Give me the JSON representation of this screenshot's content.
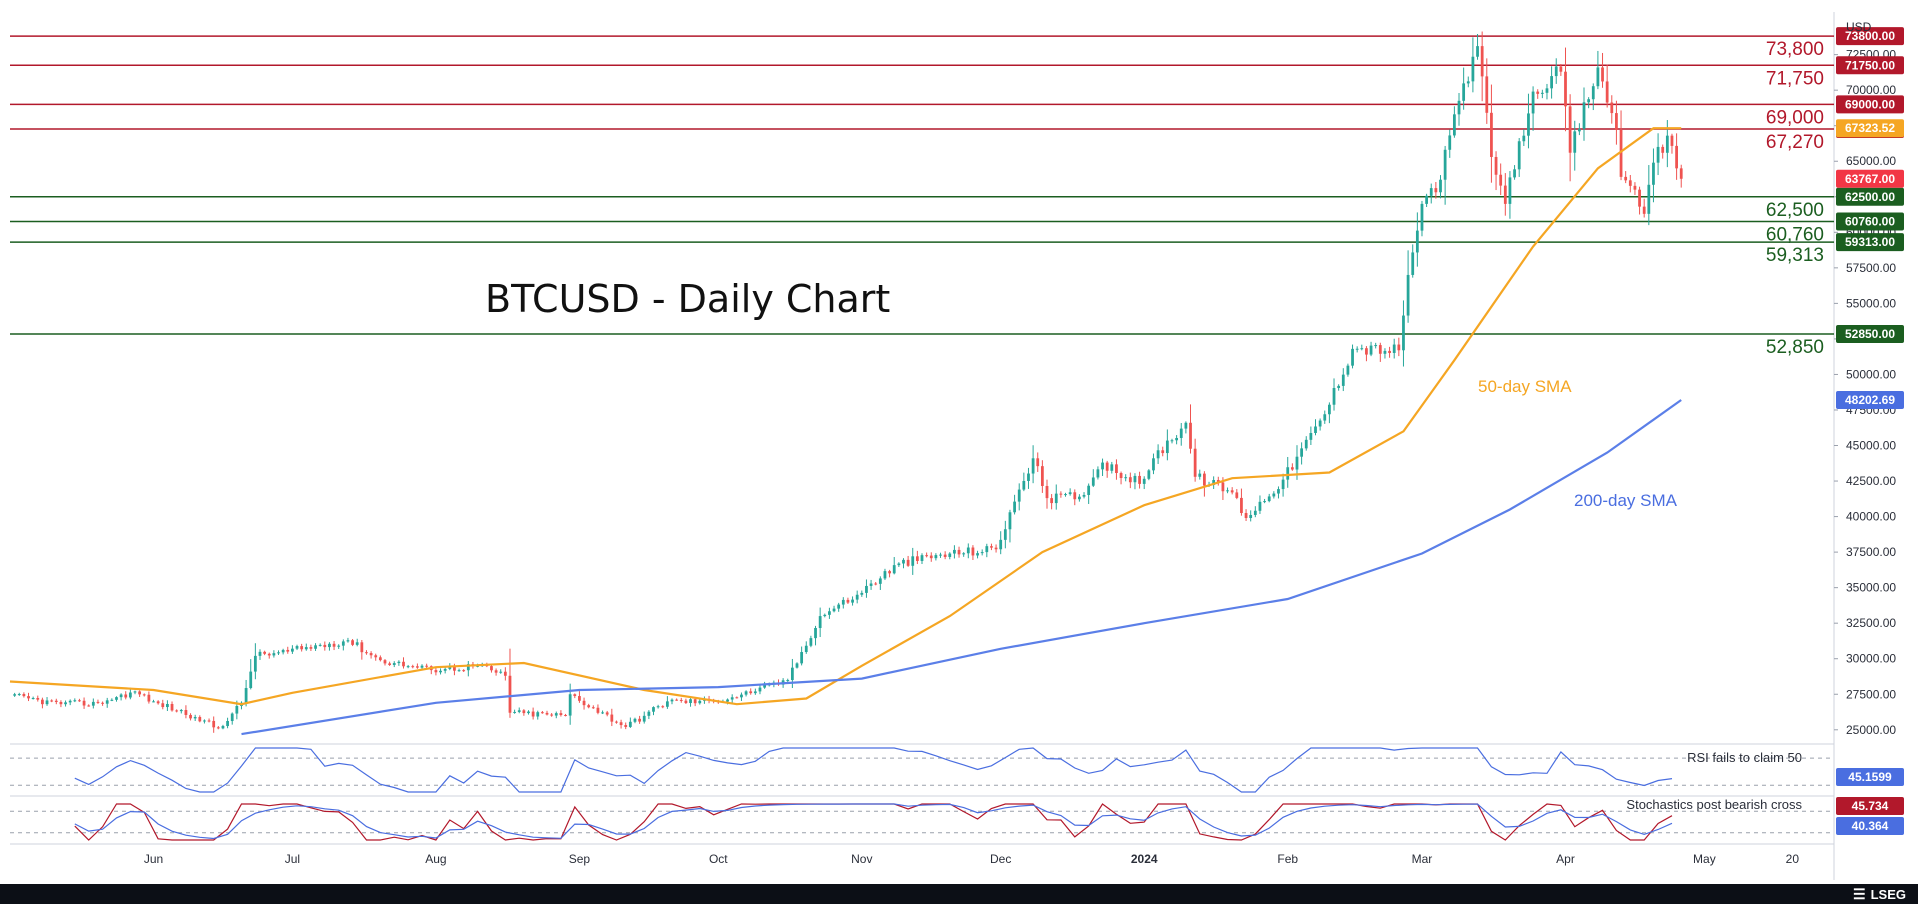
{
  "chart_data": {
    "type": "candlestick",
    "symbol_title": "BTCUSD - Daily Chart",
    "currency": "USD",
    "ylim": [
      24000,
      75500
    ],
    "y_ticks": [
      25000,
      27500,
      30000,
      32500,
      35000,
      37500,
      40000,
      42500,
      45000,
      47500,
      50000,
      52500,
      55000,
      57500,
      60000,
      62500,
      65000,
      67500,
      70000,
      72500
    ],
    "x_range": [
      "2023-05-01",
      "2024-05-29"
    ],
    "x_ticks": [
      {
        "date": "2023-06-01",
        "label": "Jun"
      },
      {
        "date": "2023-07-01",
        "label": "Jul"
      },
      {
        "date": "2023-08-01",
        "label": "Aug"
      },
      {
        "date": "2023-09-01",
        "label": "Sep"
      },
      {
        "date": "2023-10-01",
        "label": "Oct"
      },
      {
        "date": "2023-11-01",
        "label": "Nov"
      },
      {
        "date": "2023-12-01",
        "label": "Dec"
      },
      {
        "date": "2024-01-01",
        "label": "2024",
        "bold": true
      },
      {
        "date": "2024-02-01",
        "label": "Feb"
      },
      {
        "date": "2024-03-01",
        "label": "Mar"
      },
      {
        "date": "2024-04-01",
        "label": "Apr"
      },
      {
        "date": "2024-05-01",
        "label": "May"
      },
      {
        "date": "2024-05-20",
        "label": "20"
      }
    ],
    "anchors": [
      [
        "2023-05-01",
        27400
      ],
      [
        "2023-05-12",
        26800
      ],
      [
        "2023-05-20",
        26900
      ],
      [
        "2023-05-28",
        27700
      ],
      [
        "2023-06-01",
        27000
      ],
      [
        "2023-06-10",
        25900
      ],
      [
        "2023-06-15",
        25100
      ],
      [
        "2023-06-20",
        26900
      ],
      [
        "2023-06-23",
        30200
      ],
      [
        "2023-06-30",
        30500
      ],
      [
        "2023-07-13",
        31300
      ],
      [
        "2023-07-20",
        29900
      ],
      [
        "2023-07-31",
        29200
      ],
      [
        "2023-08-10",
        29500
      ],
      [
        "2023-08-16",
        28800
      ],
      [
        "2023-08-17",
        26200
      ],
      [
        "2023-08-29",
        26000
      ],
      [
        "2023-08-30",
        27500
      ],
      [
        "2023-09-11",
        25200
      ],
      [
        "2023-09-20",
        27000
      ],
      [
        "2023-09-30",
        27000
      ],
      [
        "2023-10-09",
        27700
      ],
      [
        "2023-10-16",
        28500
      ],
      [
        "2023-10-23",
        33000
      ],
      [
        "2023-10-31",
        34500
      ],
      [
        "2023-11-09",
        36700
      ],
      [
        "2023-11-20",
        37400
      ],
      [
        "2023-11-30",
        37700
      ],
      [
        "2023-12-05",
        41900
      ],
      [
        "2023-12-08",
        44100
      ],
      [
        "2023-12-11",
        41300
      ],
      [
        "2023-12-18",
        41400
      ],
      [
        "2023-12-23",
        43800
      ],
      [
        "2023-12-31",
        42300
      ],
      [
        "2024-01-03",
        44100
      ],
      [
        "2024-01-10",
        46600
      ],
      [
        "2024-01-12",
        42800
      ],
      [
        "2024-01-20",
        41700
      ],
      [
        "2024-01-23",
        39900
      ],
      [
        "2024-01-31",
        42600
      ],
      [
        "2024-02-09",
        47200
      ],
      [
        "2024-02-15",
        51800
      ],
      [
        "2024-02-25",
        51700
      ],
      [
        "2024-02-27",
        57000
      ],
      [
        "2024-03-01",
        62000
      ],
      [
        "2024-03-05",
        63700
      ],
      [
        "2024-03-08",
        68300
      ],
      [
        "2024-03-13",
        73100
      ],
      [
        "2024-03-16",
        65300
      ],
      [
        "2024-03-19",
        62000
      ],
      [
        "2024-03-25",
        69900
      ],
      [
        "2024-03-31",
        71300
      ],
      [
        "2024-04-02",
        65600
      ],
      [
        "2024-04-08",
        71600
      ],
      [
        "2024-04-12",
        67200
      ],
      [
        "2024-04-13",
        63900
      ],
      [
        "2024-04-16",
        63000
      ],
      [
        "2024-04-18",
        61300
      ],
      [
        "2024-04-20",
        64900
      ],
      [
        "2024-04-23",
        66800
      ],
      [
        "2024-04-25",
        64500
      ],
      [
        "2024-04-26",
        63767
      ]
    ],
    "series": [
      {
        "name": "50-day SMA",
        "color": "#f5a623",
        "points": [
          [
            "2023-05-01",
            28400
          ],
          [
            "2023-06-01",
            27800
          ],
          [
            "2023-06-20",
            26800
          ],
          [
            "2023-07-01",
            27600
          ],
          [
            "2023-08-01",
            29400
          ],
          [
            "2023-08-20",
            29700
          ],
          [
            "2023-09-15",
            27800
          ],
          [
            "2023-10-05",
            26800
          ],
          [
            "2023-10-20",
            27200
          ],
          [
            "2023-11-01",
            29500
          ],
          [
            "2023-11-20",
            33000
          ],
          [
            "2023-12-10",
            37500
          ],
          [
            "2024-01-01",
            40800
          ],
          [
            "2024-01-20",
            42700
          ],
          [
            "2024-02-10",
            43100
          ],
          [
            "2024-02-26",
            46000
          ],
          [
            "2024-03-08",
            51000
          ],
          [
            "2024-03-25",
            59000
          ],
          [
            "2024-04-08",
            64500
          ],
          [
            "2024-04-20",
            67323.52
          ],
          [
            "2024-04-26",
            67323.52
          ]
        ]
      },
      {
        "name": "200-day SMA",
        "color": "#5b7fe8",
        "points": [
          [
            "2023-06-20",
            24700
          ],
          [
            "2023-08-01",
            26900
          ],
          [
            "2023-09-01",
            27800
          ],
          [
            "2023-10-01",
            28000
          ],
          [
            "2023-11-01",
            28600
          ],
          [
            "2023-12-01",
            30700
          ],
          [
            "2024-01-01",
            32500
          ],
          [
            "2024-02-01",
            34200
          ],
          [
            "2024-03-01",
            37400
          ],
          [
            "2024-03-20",
            40500
          ],
          [
            "2024-04-10",
            44500
          ],
          [
            "2024-04-26",
            48202.69
          ]
        ]
      }
    ],
    "levels": [
      {
        "value": 73800,
        "label": "73,800",
        "tag": "73800.00",
        "color": "#b2182b"
      },
      {
        "value": 71750,
        "label": "71,750",
        "tag": "71750.00",
        "color": "#b2182b"
      },
      {
        "value": 69000,
        "label": "69,000",
        "tag": "69000.00",
        "color": "#b2182b"
      },
      {
        "value": 67270,
        "label": "67,270",
        "tag": "67270.00",
        "color": "#b2182b"
      },
      {
        "value": 62500,
        "label": "62,500",
        "tag": "62500.00",
        "color": "#1b5e20"
      },
      {
        "value": 60760,
        "label": "60,760",
        "tag": "60760.00",
        "color": "#1b5e20"
      },
      {
        "value": 59313,
        "label": "59,313",
        "tag": "59313.00",
        "color": "#1b5e20"
      },
      {
        "value": 52850,
        "label": "52,850",
        "tag": "52850.00",
        "color": "#1b5e20"
      }
    ],
    "price_tags": [
      {
        "value": 67323.52,
        "tag": "67323.52",
        "color": "#f5a623"
      },
      {
        "value": 63767,
        "tag": "63767.00",
        "color": "#f23645"
      },
      {
        "value": 48202.69,
        "tag": "48202.69",
        "color": "#4a6ee0"
      }
    ],
    "sma_labels": [
      {
        "text": "50-day SMA",
        "color": "#f5a623"
      },
      {
        "text": "200-day SMA",
        "color": "#4a6ee0"
      }
    ],
    "rsi": {
      "note": "RSI fails to claim 50",
      "last": "45.1599",
      "last_color": "#4a6ee0"
    },
    "stochastics": {
      "note": "Stochastics post bearish cross",
      "k_last": "45.734",
      "d_last": "40.364",
      "k_color": "#b2182b",
      "d_color": "#4a6ee0"
    },
    "up_color": "#26a69a",
    "down_color": "#ef5350",
    "brand": "LSEG"
  }
}
